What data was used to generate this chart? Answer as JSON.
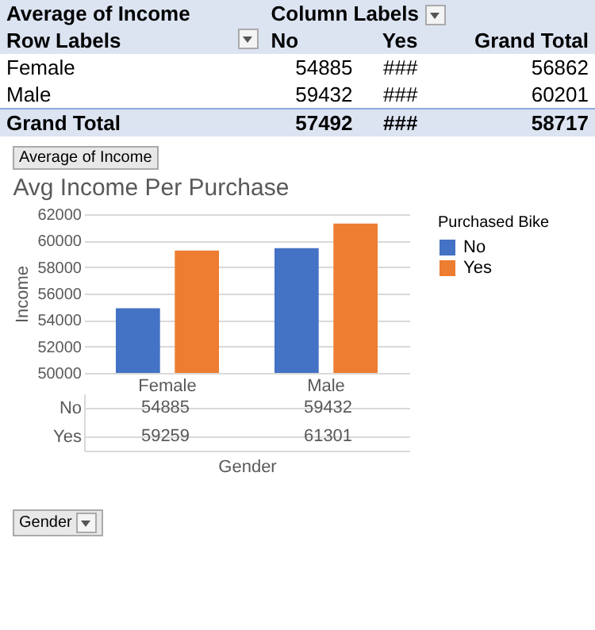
{
  "chart_data": [
    {
      "type": "other",
      "title": "Average of Income",
      "subtitle": "Column Labels",
      "ylabel": "Row Labels",
      "categories": [
        "No",
        "Yes",
        "Grand Total"
      ],
      "y_categories": [
        "Female",
        "Male",
        "Grand Total"
      ],
      "cell_labels": [
        [
          "54885",
          "###",
          "56862"
        ],
        [
          "59432",
          "###",
          "60201"
        ],
        [
          "57492",
          "###",
          "58717"
        ]
      ]
    },
    {
      "type": "bar",
      "title": "Avg Income Per Purchase",
      "xlabel": "Gender",
      "ylabel": "Income",
      "legend_title": "Purchased Bike",
      "categories": [
        "Female",
        "Male"
      ],
      "series": [
        {
          "name": "No",
          "color": "#4472c4",
          "values": [
            54885,
            59432
          ]
        },
        {
          "name": "Yes",
          "color": "#ed7d31",
          "values": [
            59259,
            61301
          ]
        }
      ],
      "ylim": [
        50000,
        62000
      ],
      "yticks": [
        50000,
        52000,
        54000,
        56000,
        58000,
        60000,
        62000
      ],
      "grid": "y",
      "legend": "right",
      "data_labels": true,
      "annotations": [
        "Average of Income",
        "Gender"
      ]
    }
  ]
}
